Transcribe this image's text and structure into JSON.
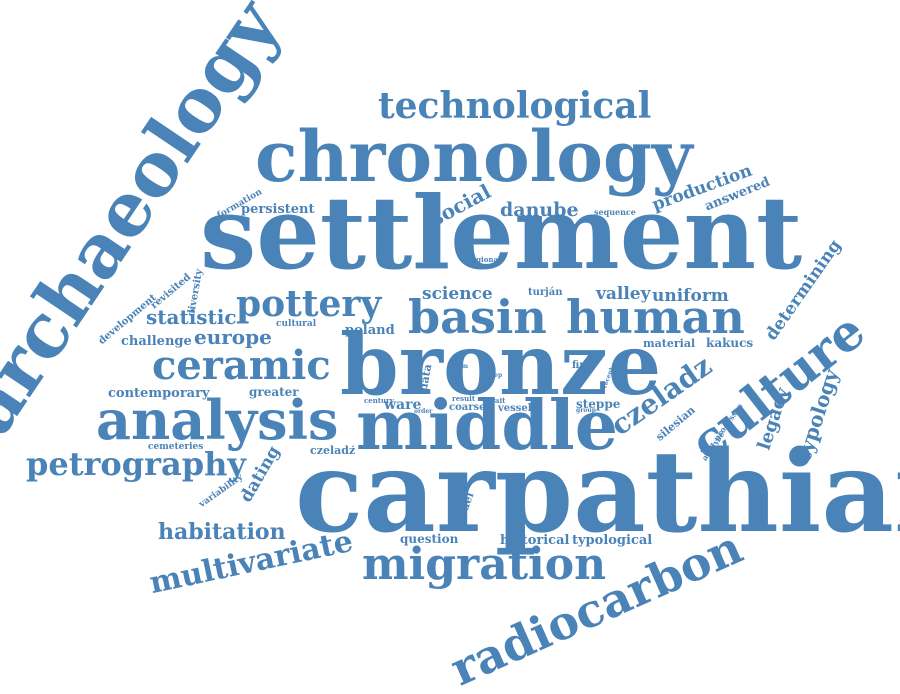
{
  "word_cloud": {
    "color": "#4a83b7",
    "words": [
      {
        "text": "carpathian"
      },
      {
        "text": "settlement"
      },
      {
        "text": "bronze"
      },
      {
        "text": "middle"
      },
      {
        "text": "chronology"
      },
      {
        "text": "archaeology"
      },
      {
        "text": "analysis"
      },
      {
        "text": "culture"
      },
      {
        "text": "radiocarbon"
      },
      {
        "text": "migration"
      },
      {
        "text": "human"
      },
      {
        "text": "basin"
      },
      {
        "text": "technological"
      },
      {
        "text": "ceramic"
      },
      {
        "text": "pottery"
      },
      {
        "text": "petrography"
      },
      {
        "text": "multivariate"
      },
      {
        "text": "czeladz"
      },
      {
        "text": "habitation"
      },
      {
        "text": "europe"
      },
      {
        "text": "statistic"
      },
      {
        "text": "social"
      },
      {
        "text": "danube"
      },
      {
        "text": "science"
      },
      {
        "text": "uniform"
      },
      {
        "text": "valley"
      },
      {
        "text": "production"
      },
      {
        "text": "typology"
      },
      {
        "text": "legacy"
      },
      {
        "text": "determining"
      },
      {
        "text": "dating"
      },
      {
        "text": "poland"
      },
      {
        "text": "contemporary"
      },
      {
        "text": "challenge"
      },
      {
        "text": "persistent"
      },
      {
        "text": "answered"
      },
      {
        "text": "greater"
      },
      {
        "text": "ware"
      },
      {
        "text": "historical"
      },
      {
        "text": "typological"
      },
      {
        "text": "question"
      },
      {
        "text": "coarse"
      },
      {
        "text": "vessel"
      },
      {
        "text": "steppe"
      },
      {
        "text": "material"
      },
      {
        "text": "kakucs"
      },
      {
        "text": "silesian"
      },
      {
        "text": "czeladź"
      },
      {
        "text": "model"
      },
      {
        "text": "data"
      },
      {
        "text": "fine"
      },
      {
        "text": "cultural"
      },
      {
        "text": "development"
      },
      {
        "text": "revisited"
      },
      {
        "text": "diversity"
      },
      {
        "text": "formation"
      },
      {
        "text": "cemeteries"
      },
      {
        "text": "variability"
      },
      {
        "text": "turján"
      },
      {
        "text": "sequence"
      },
      {
        "text": "regional"
      },
      {
        "text": "processes"
      },
      {
        "text": "analyse"
      },
      {
        "text": "century"
      },
      {
        "text": "order"
      },
      {
        "text": "result"
      },
      {
        "text": "trait"
      },
      {
        "text": "step"
      },
      {
        "text": "recent"
      },
      {
        "text": "group"
      },
      {
        "text": "form"
      }
    ]
  }
}
